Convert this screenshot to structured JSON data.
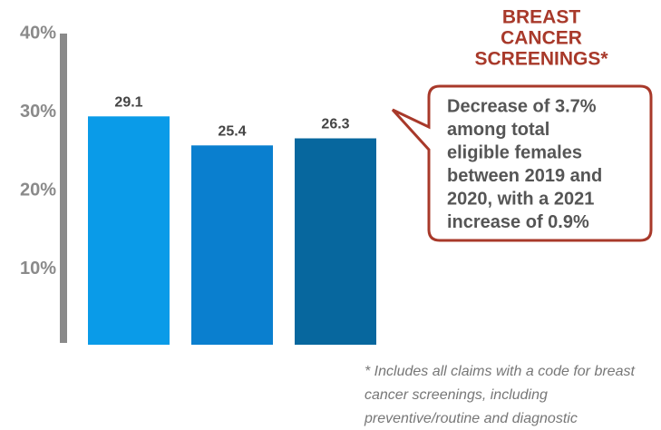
{
  "chart_data": {
    "type": "bar",
    "title": [
      "BREAST",
      "CANCER",
      "SCREENINGS*"
    ],
    "annotation": [
      "Decrease of 3.7%",
      "among total",
      "eligible females",
      "between 2019 and",
      "2020, with a 2021",
      "increase of 0.9%"
    ],
    "footnote": [
      "* Includes all claims with a code for breast",
      "cancer screenings, including",
      "preventive/routine and diagnostic"
    ],
    "categories": [
      null,
      null,
      null
    ],
    "values": [
      29.1,
      25.4,
      26.3
    ],
    "colors": [
      "#0a9be8",
      "#0a7fcf",
      "#07679e"
    ],
    "ylim": [
      0,
      40
    ],
    "yticks": [
      {
        "value": 10,
        "label": "10%"
      },
      {
        "value": 20,
        "label": "20%"
      },
      {
        "value": 30,
        "label": "30%"
      },
      {
        "value": 40,
        "label": "40%"
      }
    ],
    "grid": false
  }
}
